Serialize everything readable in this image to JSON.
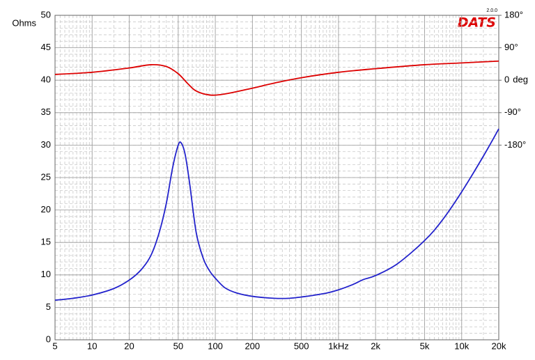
{
  "chart_data": {
    "type": "line",
    "logo": "DATS",
    "version": "2.0.0",
    "y_label": "Ohms",
    "y_label_color": "#2222cc",
    "y2_label": "deg",
    "y2_label_color": "#dd0000",
    "xscale": "log",
    "grid": true,
    "minor_grid": true,
    "xlim": [
      5,
      20000
    ],
    "xticks": [
      5,
      10,
      20,
      50,
      100,
      200,
      500,
      {
        "value": 1000,
        "label": "1kHz"
      },
      {
        "value": 2000,
        "label": "2k"
      },
      {
        "value": 5000,
        "label": "5k"
      },
      {
        "value": 10000,
        "label": "10k"
      },
      {
        "value": 20000,
        "label": "20k"
      }
    ],
    "ylim": [
      0,
      50
    ],
    "yticks": [
      0,
      5,
      10,
      15,
      20,
      25,
      30,
      35,
      40,
      45,
      50
    ],
    "y2lim": [
      -720,
      180
    ],
    "y2ticks": [
      {
        "value": -180,
        "label": "-180°"
      },
      {
        "value": -90,
        "label": "-90°"
      },
      0,
      {
        "value": 90,
        "label": "90°"
      },
      {
        "value": 180,
        "label": "180°"
      }
    ],
    "series": [
      {
        "color": "#2222cc",
        "axis": "y",
        "x": [
          5,
          7,
          10,
          15,
          20,
          25,
          30,
          35,
          40,
          45,
          50,
          53,
          57,
          62,
          70,
          80,
          90,
          100,
          120,
          150,
          200,
          300,
          400,
          500,
          600,
          800,
          1000,
          1300,
          1600,
          2000,
          3000,
          5000,
          7000,
          10000,
          15000,
          20000
        ],
        "values": [
          6.1,
          6.4,
          6.9,
          7.9,
          9.2,
          10.8,
          13,
          16.5,
          21,
          26.5,
          30,
          30.3,
          28.5,
          24,
          16.5,
          12.5,
          10.6,
          9.5,
          8.0,
          7.2,
          6.7,
          6.4,
          6.4,
          6.6,
          6.8,
          7.2,
          7.7,
          8.5,
          9.3,
          9.9,
          11.7,
          15.3,
          18.5,
          22.8,
          28.3,
          32.5
        ]
      },
      {
        "color": "#dd0000",
        "axis": "y2",
        "x": [
          5,
          10,
          20,
          30,
          40,
          50,
          60,
          70,
          90,
          120,
          200,
          300,
          500,
          1000,
          2000,
          5000,
          10000,
          20000
        ],
        "values": [
          16,
          22,
          34,
          43,
          38,
          18,
          -10,
          -30,
          -41,
          -38,
          -22,
          -8,
          7,
          22,
          32,
          43,
          48,
          53
        ]
      }
    ]
  }
}
